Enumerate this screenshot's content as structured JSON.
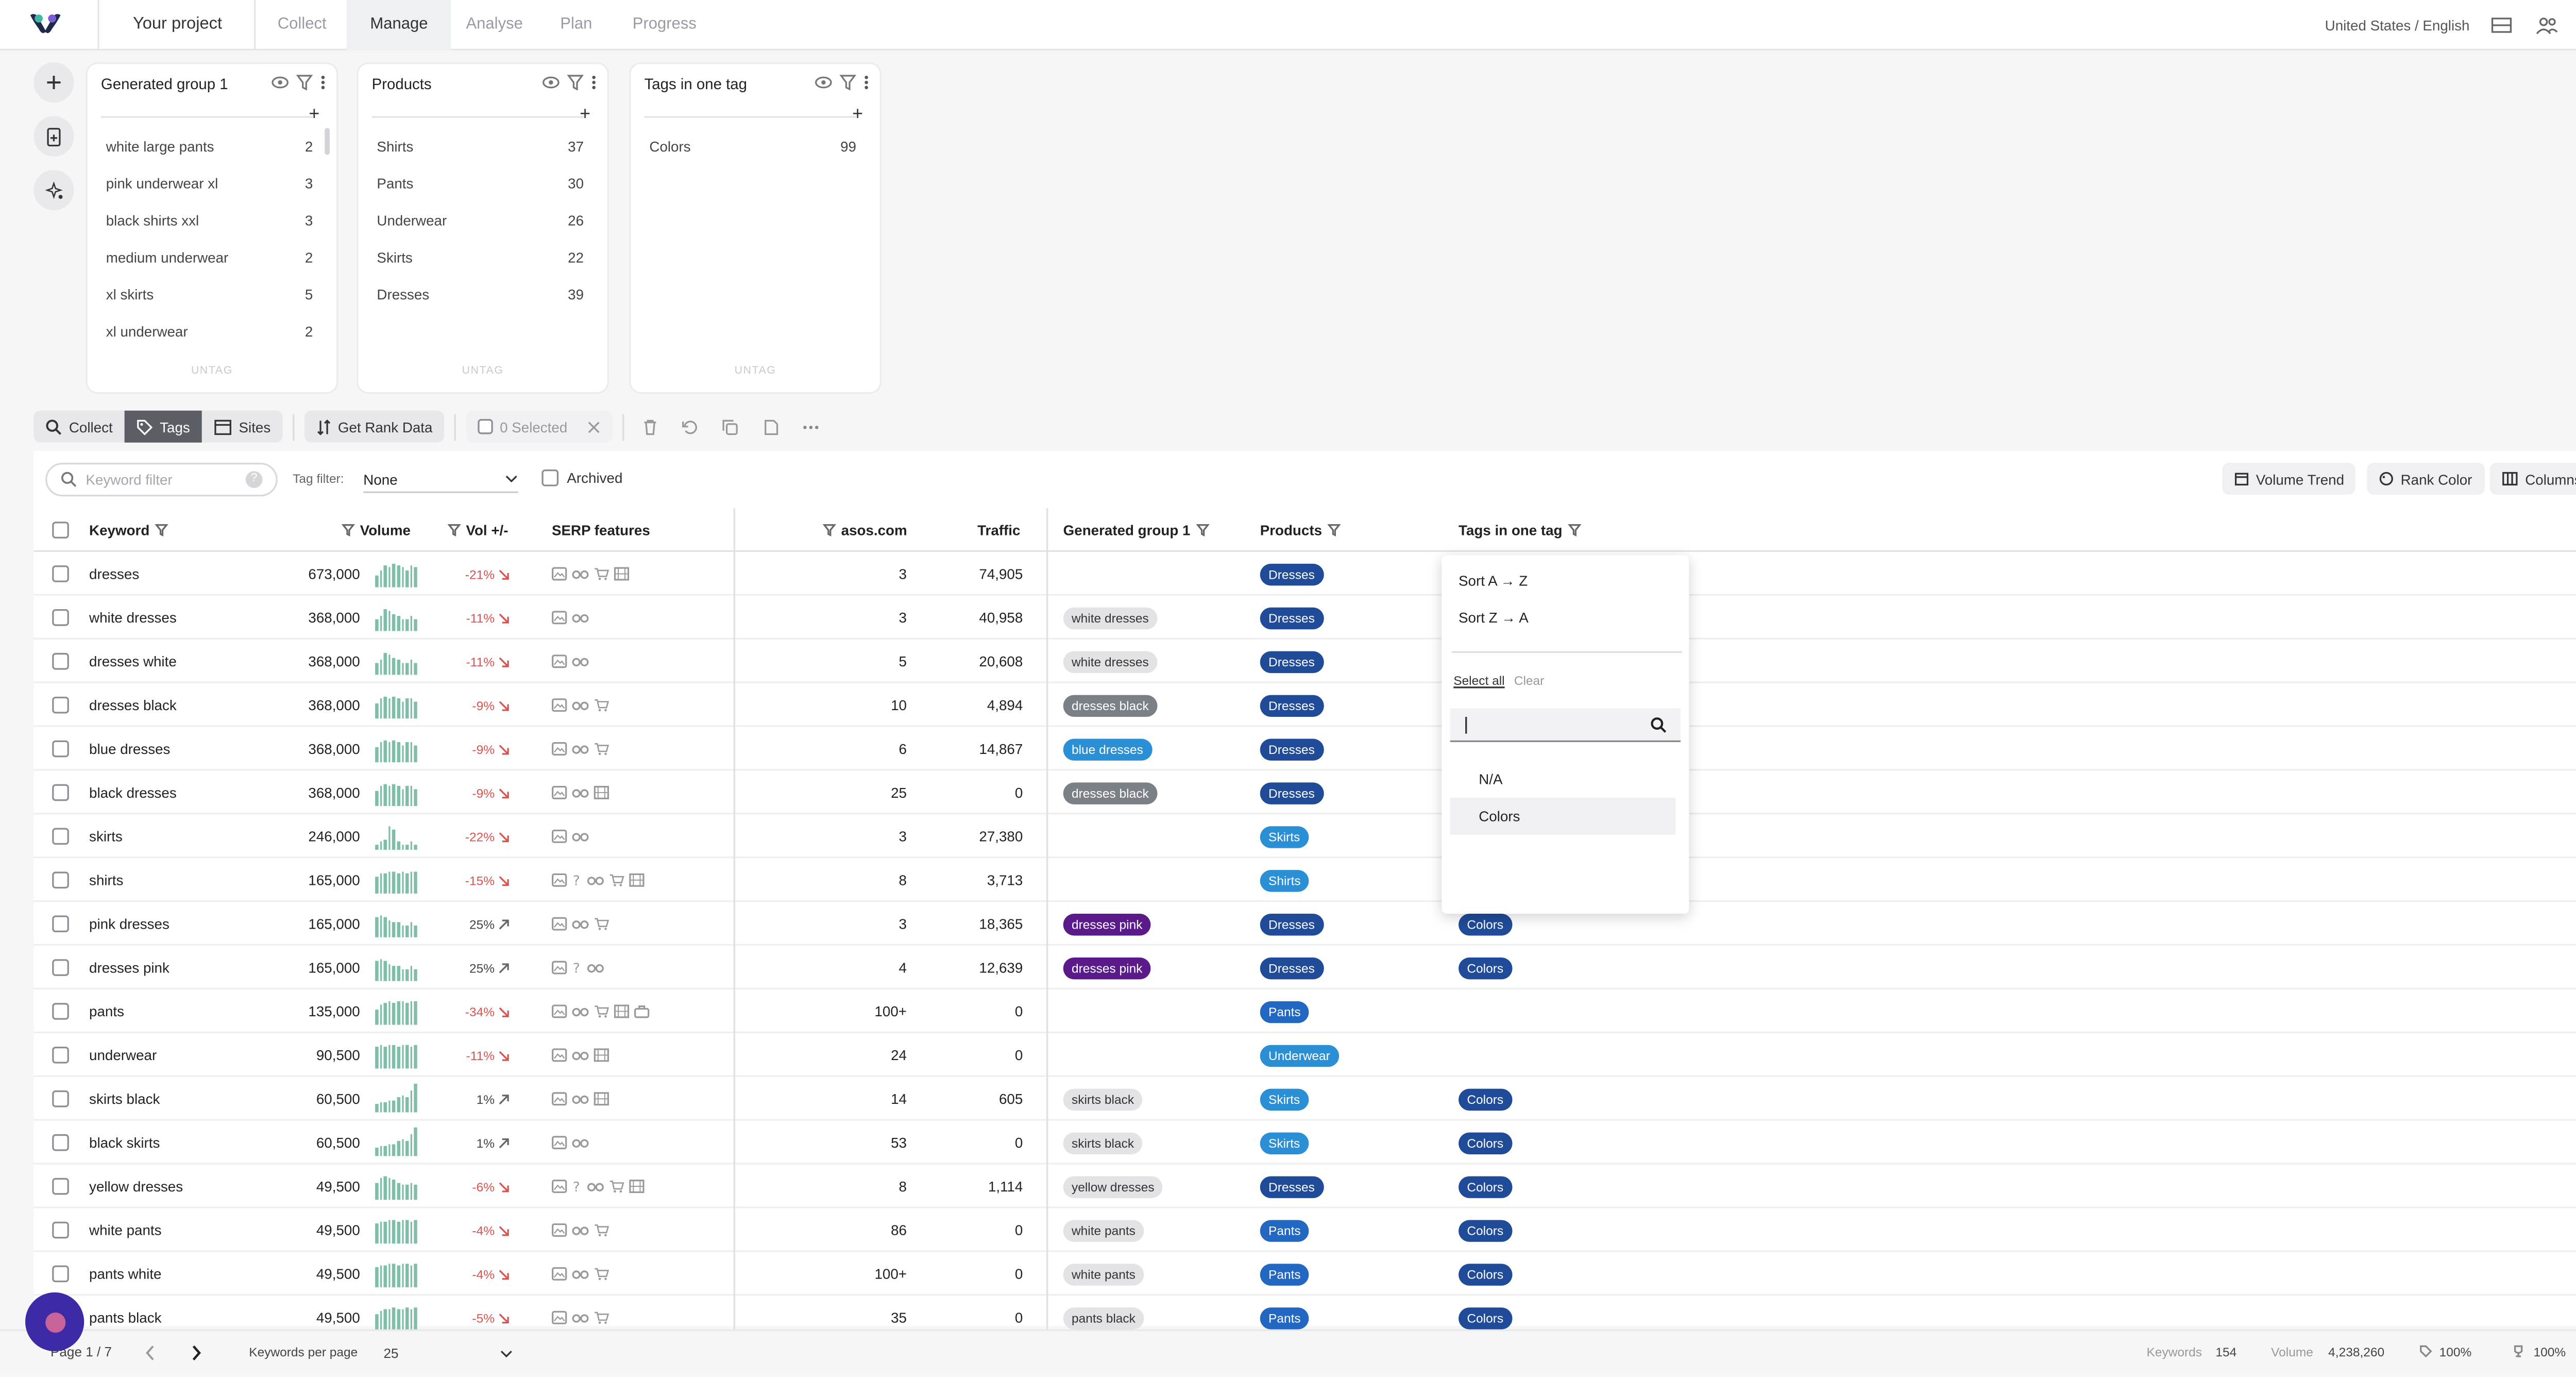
{
  "nav": {
    "project": "Your project",
    "tabs": [
      {
        "label": "Collect",
        "active": false
      },
      {
        "label": "Manage",
        "active": true
      },
      {
        "label": "Analyse",
        "active": false
      },
      {
        "label": "Plan",
        "active": false
      },
      {
        "label": "Progress",
        "active": false
      }
    ],
    "locale": "United States / English"
  },
  "cards": [
    {
      "title": "Generated group 1",
      "untag": "UNTAG",
      "rows": [
        {
          "name": "white large pants",
          "count": "2"
        },
        {
          "name": "pink underwear xl",
          "count": "3"
        },
        {
          "name": "black shirts xxl",
          "count": "3"
        },
        {
          "name": "medium underwear",
          "count": "2"
        },
        {
          "name": "xl skirts",
          "count": "5"
        },
        {
          "name": "xl underwear",
          "count": "2"
        }
      ]
    },
    {
      "title": "Products",
      "untag": "UNTAG",
      "rows": [
        {
          "name": "Shirts",
          "count": "37"
        },
        {
          "name": "Pants",
          "count": "30"
        },
        {
          "name": "Underwear",
          "count": "26"
        },
        {
          "name": "Skirts",
          "count": "22"
        },
        {
          "name": "Dresses",
          "count": "39"
        }
      ]
    },
    {
      "title": "Tags in one tag",
      "untag": "UNTAG",
      "rows": [
        {
          "name": "Colors",
          "count": "99"
        }
      ]
    }
  ],
  "toolbar": {
    "collect": "Collect",
    "tags": "Tags",
    "sites": "Sites",
    "get_rank": "Get Rank Data",
    "selected": "0 Selected"
  },
  "filters": {
    "keyword_placeholder": "Keyword filter",
    "tag_filter_label": "Tag filter:",
    "tag_filter_value": "None",
    "archived": "Archived",
    "volume_trend": "Volume Trend",
    "rank_color": "Rank Color",
    "columns": "Columns"
  },
  "table": {
    "headers": {
      "keyword": "Keyword",
      "volume": "Volume",
      "vol_change": "Vol +/-",
      "serp": "SERP features",
      "site": "asos.com",
      "traffic": "Traffic",
      "group": "Generated group 1",
      "products": "Products",
      "tags": "Tags in one tag"
    },
    "colors": {
      "Dresses": "#1f4b99",
      "Skirts": "#2b8fd6",
      "Shirts": "#2b8fd6",
      "Pants": "#2267c2",
      "Underwear": "#2b8fd6",
      "Colors": "#1f4b99",
      "group_gray": "#e3e3e6",
      "group_dark": "#7b7f86",
      "group_blue": "#2b8fd6",
      "group_purple": "#5b1a8a"
    },
    "rows": [
      {
        "keyword": "dresses",
        "volume": "673,000",
        "change": "-21%",
        "dir": "down",
        "serp": [
          "img",
          "glasses",
          "cart",
          "film"
        ],
        "rank": "3",
        "traffic": "74,905",
        "group": "",
        "gstyle": "",
        "product": "Dresses",
        "tag": "",
        "spark": [
          5,
          7,
          9,
          8,
          10,
          9,
          8,
          7,
          9,
          8
        ]
      },
      {
        "keyword": "white dresses",
        "volume": "368,000",
        "change": "-11%",
        "dir": "down",
        "serp": [
          "img",
          "glasses"
        ],
        "rank": "3",
        "traffic": "40,958",
        "group": "white dresses",
        "gstyle": "gray",
        "product": "Dresses",
        "tag": "",
        "spark": [
          5,
          6,
          9,
          8,
          7,
          6,
          5,
          5,
          6,
          5
        ]
      },
      {
        "keyword": "dresses white",
        "volume": "368,000",
        "change": "-11%",
        "dir": "down",
        "serp": [
          "img",
          "glasses"
        ],
        "rank": "5",
        "traffic": "20,608",
        "group": "white dresses",
        "gstyle": "gray",
        "product": "Dresses",
        "tag": "",
        "spark": [
          5,
          6,
          9,
          8,
          7,
          6,
          5,
          5,
          6,
          5
        ]
      },
      {
        "keyword": "dresses black",
        "volume": "368,000",
        "change": "-9%",
        "dir": "down",
        "serp": [
          "img",
          "glasses",
          "cart"
        ],
        "rank": "10",
        "traffic": "4,894",
        "group": "dresses black",
        "gstyle": "dark",
        "product": "Dresses",
        "tag": "",
        "spark": [
          6,
          8,
          9,
          8,
          9,
          8,
          7,
          8,
          8,
          7
        ]
      },
      {
        "keyword": "blue dresses",
        "volume": "368,000",
        "change": "-9%",
        "dir": "down",
        "serp": [
          "img",
          "glasses",
          "cart"
        ],
        "rank": "6",
        "traffic": "14,867",
        "group": "blue dresses",
        "gstyle": "blue",
        "product": "Dresses",
        "tag": "",
        "spark": [
          6,
          8,
          9,
          8,
          9,
          8,
          7,
          8,
          8,
          7
        ]
      },
      {
        "keyword": "black dresses",
        "volume": "368,000",
        "change": "-9%",
        "dir": "down",
        "serp": [
          "img",
          "glasses",
          "film"
        ],
        "rank": "25",
        "traffic": "0",
        "group": "dresses black",
        "gstyle": "dark",
        "product": "Dresses",
        "tag": "",
        "spark": [
          6,
          8,
          9,
          8,
          9,
          8,
          7,
          8,
          8,
          7
        ]
      },
      {
        "keyword": "skirts",
        "volume": "246,000",
        "change": "-22%",
        "dir": "down",
        "serp": [
          "img",
          "glasses"
        ],
        "rank": "3",
        "traffic": "27,380",
        "group": "",
        "gstyle": "",
        "product": "Skirts",
        "tag": "",
        "spark": [
          2,
          3,
          4,
          10,
          8,
          3,
          2,
          2,
          3,
          2
        ]
      },
      {
        "keyword": "shirts",
        "volume": "165,000",
        "change": "-15%",
        "dir": "down",
        "serp": [
          "img",
          "q",
          "glasses",
          "cart",
          "film"
        ],
        "rank": "8",
        "traffic": "3,713",
        "group": "",
        "gstyle": "",
        "product": "Shirts",
        "tag": "",
        "spark": [
          7,
          8,
          8,
          9,
          9,
          8,
          9,
          8,
          9,
          9
        ]
      },
      {
        "keyword": "pink dresses",
        "volume": "165,000",
        "change": "25%",
        "dir": "up",
        "serp": [
          "img",
          "glasses",
          "cart"
        ],
        "rank": "3",
        "traffic": "18,365",
        "group": "dresses pink",
        "gstyle": "purple",
        "product": "Dresses",
        "tag": "Colors",
        "spark": [
          8,
          9,
          8,
          7,
          6,
          6,
          5,
          5,
          6,
          5
        ]
      },
      {
        "keyword": "dresses pink",
        "volume": "165,000",
        "change": "25%",
        "dir": "up",
        "serp": [
          "img",
          "q",
          "glasses"
        ],
        "rank": "4",
        "traffic": "12,639",
        "group": "dresses pink",
        "gstyle": "purple",
        "product": "Dresses",
        "tag": "Colors",
        "spark": [
          8,
          9,
          8,
          7,
          6,
          6,
          5,
          5,
          6,
          5
        ]
      },
      {
        "keyword": "pants",
        "volume": "135,000",
        "change": "-34%",
        "dir": "down",
        "serp": [
          "img",
          "glasses",
          "cart",
          "film",
          "bag"
        ],
        "rank": "100+",
        "traffic": "0",
        "group": "",
        "gstyle": "",
        "product": "Pants",
        "tag": "",
        "spark": [
          6,
          8,
          9,
          10,
          9,
          10,
          10,
          9,
          10,
          10
        ]
      },
      {
        "keyword": "underwear",
        "volume": "90,500",
        "change": "-11%",
        "dir": "down",
        "serp": [
          "img",
          "glasses",
          "film"
        ],
        "rank": "24",
        "traffic": "0",
        "group": "",
        "gstyle": "",
        "product": "Underwear",
        "tag": "",
        "spark": [
          9,
          10,
          9,
          10,
          10,
          9,
          10,
          10,
          9,
          10
        ]
      },
      {
        "keyword": "skirts black",
        "volume": "60,500",
        "change": "1%",
        "dir": "up",
        "serp": [
          "img",
          "glasses",
          "film"
        ],
        "rank": "14",
        "traffic": "605",
        "group": "skirts black",
        "gstyle": "gray",
        "product": "Skirts",
        "tag": "Colors",
        "spark": [
          3,
          4,
          4,
          5,
          5,
          6,
          7,
          6,
          9,
          12
        ]
      },
      {
        "keyword": "black skirts",
        "volume": "60,500",
        "change": "1%",
        "dir": "up",
        "serp": [
          "img",
          "glasses"
        ],
        "rank": "53",
        "traffic": "0",
        "group": "skirts black",
        "gstyle": "gray",
        "product": "Skirts",
        "tag": "Colors",
        "spark": [
          3,
          4,
          4,
          5,
          5,
          6,
          7,
          6,
          9,
          12
        ]
      },
      {
        "keyword": "yellow dresses",
        "volume": "49,500",
        "change": "-6%",
        "dir": "down",
        "serp": [
          "img",
          "q",
          "glasses",
          "cart",
          "film"
        ],
        "rank": "8",
        "traffic": "1,114",
        "group": "yellow dresses",
        "gstyle": "gray",
        "product": "Dresses",
        "tag": "Colors",
        "spark": [
          7,
          9,
          10,
          9,
          8,
          7,
          6,
          6,
          7,
          6
        ]
      },
      {
        "keyword": "white pants",
        "volume": "49,500",
        "change": "-4%",
        "dir": "down",
        "serp": [
          "img",
          "glasses",
          "cart"
        ],
        "rank": "86",
        "traffic": "0",
        "group": "white pants",
        "gstyle": "gray",
        "product": "Pants",
        "tag": "Colors",
        "spark": [
          8,
          9,
          9,
          10,
          10,
          9,
          10,
          10,
          9,
          10
        ]
      },
      {
        "keyword": "pants white",
        "volume": "49,500",
        "change": "-4%",
        "dir": "down",
        "serp": [
          "img",
          "glasses",
          "cart"
        ],
        "rank": "100+",
        "traffic": "0",
        "group": "white pants",
        "gstyle": "gray",
        "product": "Pants",
        "tag": "Colors",
        "spark": [
          8,
          9,
          9,
          10,
          10,
          9,
          10,
          10,
          9,
          10
        ]
      },
      {
        "keyword": "pants black",
        "volume": "49,500",
        "change": "-5%",
        "dir": "down",
        "serp": [
          "img",
          "glasses",
          "cart"
        ],
        "rank": "35",
        "traffic": "0",
        "group": "pants black",
        "gstyle": "gray",
        "product": "Pants",
        "tag": "Colors",
        "spark": [
          7,
          8,
          9,
          9,
          10,
          9,
          9,
          10,
          9,
          10
        ]
      }
    ]
  },
  "dropdown": {
    "sort_az": "Sort A → Z",
    "sort_za": "Sort Z → A",
    "select_all": "Select all",
    "clear": "Clear",
    "options": [
      {
        "label": "N/A",
        "highlight": false
      },
      {
        "label": "Colors",
        "highlight": true
      }
    ]
  },
  "footer": {
    "page": "Page 1 / 7",
    "per_page_label": "Keywords per page",
    "per_page": "25",
    "keywords_label": "Keywords",
    "keywords": "154",
    "volume_label": "Volume",
    "volume": "4,238,260",
    "tag_pct": "100%",
    "rank_pct": "100%"
  }
}
